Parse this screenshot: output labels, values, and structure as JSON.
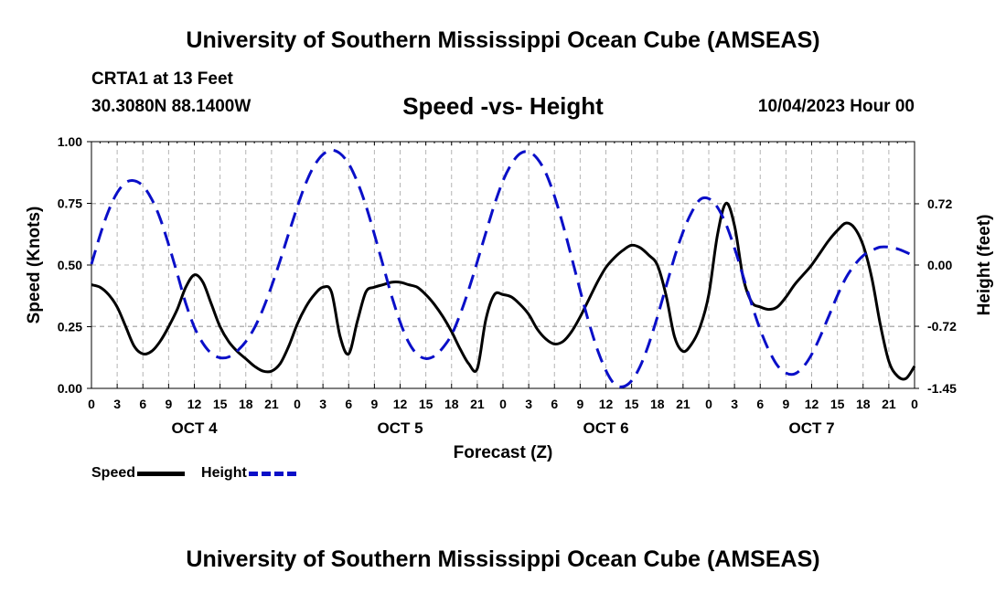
{
  "header": {
    "title": "University of Southern Mississippi Ocean Cube (AMSEAS)",
    "station": "CRTA1 at 13 Feet",
    "coords": "30.3080N  88.1400W",
    "chart_title": "Speed -vs- Height",
    "datetime": "10/04/2023 Hour 00"
  },
  "footer": {
    "title": "University of Southern Mississippi Ocean Cube (AMSEAS)"
  },
  "legend": {
    "speed_label": "Speed",
    "height_label": "Height"
  },
  "colors": {
    "speed": "#000000",
    "height": "#0a0fc8",
    "grid": "#b4b4b4"
  },
  "chart_data": {
    "type": "line",
    "title": "Speed -vs- Height",
    "xlabel": "Forecast (Z)",
    "ylabel_left": "Speed (Knots)",
    "ylabel_right": "Height (feet)",
    "x_range": [
      0,
      96
    ],
    "x_ticks": [
      0,
      3,
      6,
      9,
      12,
      15,
      18,
      21,
      24,
      27,
      30,
      33,
      36,
      39,
      42,
      45,
      48,
      51,
      54,
      57,
      60,
      63,
      66,
      69,
      72,
      75,
      78,
      81,
      84,
      87,
      90,
      93,
      96
    ],
    "x_tick_labels": [
      "0",
      "3",
      "6",
      "9",
      "12",
      "15",
      "18",
      "21",
      "0",
      "3",
      "6",
      "9",
      "12",
      "15",
      "18",
      "21",
      "0",
      "3",
      "6",
      "9",
      "12",
      "15",
      "18",
      "21",
      "0",
      "3",
      "6",
      "9",
      "12",
      "15",
      "18",
      "21",
      "0"
    ],
    "day_labels": [
      {
        "label": "OCT 4",
        "x": 12
      },
      {
        "label": "OCT 5",
        "x": 36
      },
      {
        "label": "OCT 6",
        "x": 60
      },
      {
        "label": "OCT 7",
        "x": 84
      }
    ],
    "y_left": {
      "range": [
        0,
        1
      ],
      "ticks": [
        0,
        0.25,
        0.5,
        0.75,
        1
      ],
      "tick_labels": [
        "0.00",
        "0.25",
        "0.50",
        "0.75",
        "1.00"
      ]
    },
    "y_right": {
      "range": [
        -1.45,
        1.45
      ],
      "ticks": [
        -1.45,
        -0.72,
        0,
        0.72
      ],
      "tick_labels": [
        "-1.45",
        "-0.72",
        "0.00",
        "0.72"
      ]
    },
    "series": [
      {
        "name": "Speed",
        "axis": "left",
        "style": "solid",
        "x": [
          0,
          1,
          2,
          3,
          4,
          5,
          6,
          7,
          8,
          9,
          10,
          11,
          12,
          13,
          14,
          15,
          16,
          17,
          18,
          19,
          20,
          21,
          22,
          23,
          24,
          25,
          26,
          27,
          28,
          29,
          30,
          31,
          32,
          33,
          34,
          35,
          36,
          37,
          38,
          39,
          40,
          41,
          42,
          43,
          44,
          45,
          46,
          47,
          48,
          49,
          50,
          51,
          52,
          53,
          54,
          55,
          56,
          57,
          58,
          59,
          60,
          61,
          62,
          63,
          64,
          65,
          66,
          67,
          68,
          69,
          70,
          71,
          72,
          73,
          74,
          75,
          76,
          77,
          78,
          79,
          80,
          81,
          82,
          83,
          84,
          85,
          86,
          87,
          88,
          89,
          90,
          91,
          92,
          93,
          94,
          95,
          96
        ],
        "values": [
          0.42,
          0.41,
          0.38,
          0.33,
          0.25,
          0.17,
          0.14,
          0.15,
          0.19,
          0.25,
          0.32,
          0.41,
          0.46,
          0.43,
          0.34,
          0.25,
          0.19,
          0.15,
          0.12,
          0.09,
          0.07,
          0.07,
          0.1,
          0.17,
          0.26,
          0.33,
          0.38,
          0.41,
          0.39,
          0.21,
          0.14,
          0.27,
          0.39,
          0.41,
          0.42,
          0.43,
          0.43,
          0.42,
          0.41,
          0.38,
          0.34,
          0.29,
          0.23,
          0.16,
          0.1,
          0.08,
          0.28,
          0.38,
          0.38,
          0.37,
          0.34,
          0.3,
          0.24,
          0.2,
          0.18,
          0.19,
          0.23,
          0.29,
          0.36,
          0.43,
          0.49,
          0.53,
          0.56,
          0.58,
          0.57,
          0.54,
          0.5,
          0.38,
          0.21,
          0.15,
          0.18,
          0.25,
          0.38,
          0.62,
          0.75,
          0.66,
          0.45,
          0.35,
          0.33,
          0.32,
          0.33,
          0.37,
          0.42,
          0.46,
          0.5,
          0.55,
          0.6,
          0.64,
          0.67,
          0.65,
          0.58,
          0.45,
          0.26,
          0.11,
          0.05,
          0.04,
          0.09
        ]
      },
      {
        "name": "Height",
        "axis": "right",
        "style": "dashed",
        "x": [
          0,
          1,
          2,
          3,
          4,
          5,
          6,
          7,
          8,
          9,
          10,
          11,
          12,
          13,
          14,
          15,
          16,
          17,
          18,
          19,
          20,
          21,
          22,
          23,
          24,
          25,
          26,
          27,
          28,
          29,
          30,
          31,
          32,
          33,
          34,
          35,
          36,
          37,
          38,
          39,
          40,
          41,
          42,
          43,
          44,
          45,
          46,
          47,
          48,
          49,
          50,
          51,
          52,
          53,
          54,
          55,
          56,
          57,
          58,
          59,
          60,
          61,
          62,
          63,
          64,
          65,
          66,
          67,
          68,
          69,
          70,
          71,
          72,
          73,
          74,
          75,
          76,
          77,
          78,
          79,
          80,
          81,
          82,
          83,
          84,
          85,
          86,
          87,
          88,
          89,
          90,
          91,
          92,
          93,
          94,
          95,
          96
        ],
        "values": [
          0.01,
          0.35,
          0.64,
          0.85,
          0.97,
          0.99,
          0.93,
          0.78,
          0.55,
          0.24,
          -0.1,
          -0.45,
          -0.73,
          -0.92,
          -1.04,
          -1.09,
          -1.08,
          -1.01,
          -0.9,
          -0.74,
          -0.52,
          -0.25,
          0.05,
          0.37,
          0.68,
          0.96,
          1.17,
          1.3,
          1.35,
          1.31,
          1.19,
          0.98,
          0.7,
          0.36,
          0.0,
          -0.36,
          -0.67,
          -0.91,
          -1.05,
          -1.1,
          -1.07,
          -0.97,
          -0.82,
          -0.58,
          -0.29,
          0.04,
          0.38,
          0.71,
          0.99,
          1.19,
          1.31,
          1.33,
          1.25,
          1.08,
          0.81,
          0.47,
          0.09,
          -0.3,
          -0.67,
          -0.99,
          -1.24,
          -1.4,
          -1.43,
          -1.36,
          -1.19,
          -0.93,
          -0.61,
          -0.26,
          0.09,
          0.39,
          0.62,
          0.77,
          0.78,
          0.68,
          0.48,
          0.2,
          -0.13,
          -0.46,
          -0.76,
          -1.0,
          -1.18,
          -1.27,
          -1.28,
          -1.2,
          -1.05,
          -0.84,
          -0.6,
          -0.36,
          -0.15,
          0.0,
          0.11,
          0.17,
          0.21,
          0.21,
          0.19,
          0.15,
          0.1
        ]
      }
    ]
  }
}
